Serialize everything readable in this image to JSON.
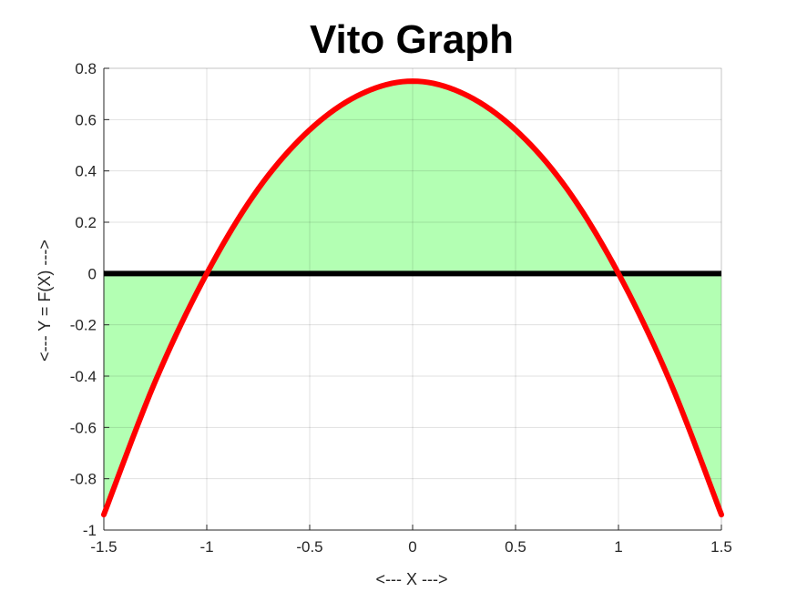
{
  "chart_data": {
    "type": "line",
    "title": "Vito Graph",
    "xlabel": "<--- X --->",
    "ylabel": "<--- Y = F(X) --->",
    "xlim": [
      -1.5,
      1.5
    ],
    "ylim": [
      -1,
      0.8
    ],
    "x_ticks": [
      -1.5,
      -1,
      -0.5,
      0,
      0.5,
      1,
      1.5
    ],
    "y_ticks": [
      -1,
      -0.8,
      -0.6,
      -0.4,
      -0.2,
      0,
      0.2,
      0.4,
      0.6,
      0.8
    ],
    "x_tick_labels": [
      "-1.5",
      "-1",
      "-0.5",
      "0",
      "0.5",
      "1",
      "1.5"
    ],
    "y_tick_labels": [
      "-1",
      "-0.8",
      "-0.6",
      "-0.4",
      "-0.2",
      "0",
      "0.2",
      "0.4",
      "0.6",
      "0.8"
    ],
    "grid": true,
    "series": [
      {
        "color": "#ff0000",
        "x": [
          -1.5,
          -1.25,
          -1.0,
          -0.75,
          -0.5,
          -0.25,
          0.0,
          0.25,
          0.5,
          0.75,
          1.0,
          1.25,
          1.5
        ],
        "y": [
          -0.94,
          -0.42,
          0.0,
          0.33,
          0.56,
          0.7,
          0.75,
          0.7,
          0.56,
          0.33,
          0.0,
          -0.42,
          -0.94
        ]
      }
    ],
    "fill_color": "#b3ffb3",
    "zero_line_color": "#000000"
  }
}
